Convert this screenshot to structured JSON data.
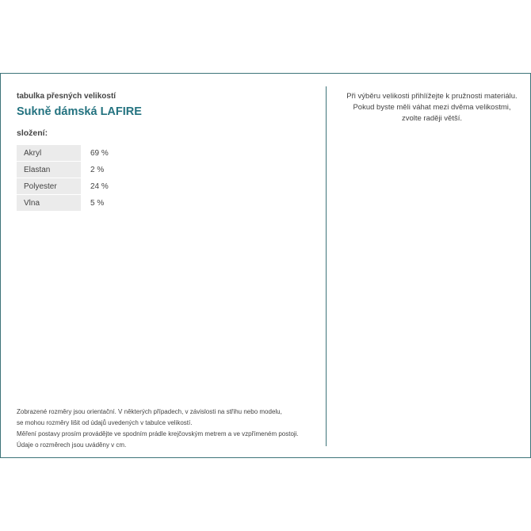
{
  "header": {
    "subtitle": "tabulka přesných velikostí",
    "title": "Sukně dámská LAFIRE"
  },
  "composition": {
    "label": "složení:",
    "rows": [
      {
        "material": "Akryl",
        "percent": "69 %"
      },
      {
        "material": "Elastan",
        "percent": "2 %"
      },
      {
        "material": "Polyester",
        "percent": "24 %"
      },
      {
        "material": "Vlna",
        "percent": "5 %"
      }
    ]
  },
  "advice": [
    "Při výběru velikosti přihlížejte k pružnosti materiálu.",
    "Pokud byste měli váhat mezi dvěma velikostmi,",
    "zvolte raději větší."
  ],
  "note": [
    "Zobrazené rozměry jsou orientační. V některých případech, v závislosti na střihu nebo modelu,",
    "se mohou rozměry lišit od údajů uvedených v tabulce velikostí.",
    "Měření postavy prosím provádějte ve spodním prádle krejčovským metrem a ve vzpřímeném postoji.",
    "Údaje o rozměrech jsou uváděny v cm."
  ],
  "colors": {
    "accent": "#247380",
    "border": "#3d7479",
    "cell_bg": "#ebebeb"
  }
}
